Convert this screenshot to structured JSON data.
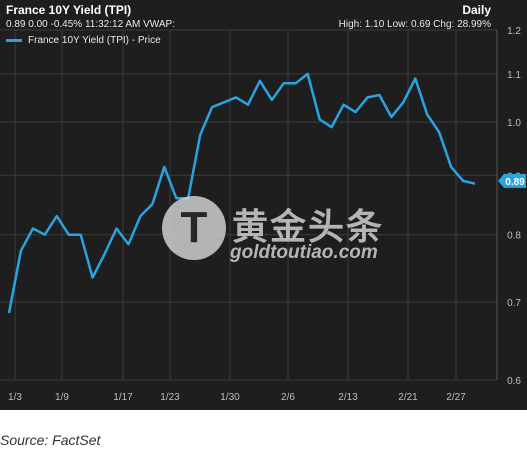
{
  "header": {
    "title": "France 10Y Yield (TPI)",
    "interval": "Daily",
    "quote": "0.89 0.00 -0.45% 11:32:12 AM VWAP:",
    "stats": "High: 1.10 Low: 0.69 Chg: 28.99%"
  },
  "legend": {
    "label": "France 10Y Yield (TPI) - Price"
  },
  "watermark": {
    "brand_cn": "黄金头条",
    "brand_en": "goldtoutiao.com",
    "badge": "T"
  },
  "source": "Source: FactSet",
  "colors": {
    "line": "#2aa4e0",
    "background": "#1e1e1e",
    "grid": "#3c3c3c",
    "text": "#e8e8e8"
  },
  "chart_data": {
    "type": "line",
    "title": "France 10Y Yield (TPI)",
    "xlabel": "",
    "ylabel": "",
    "y_scale": "log",
    "ylim": [
      0.6,
      1.2
    ],
    "x_tick_labels": [
      "1/3",
      "1/9",
      "1/17",
      "1/23",
      "1/30",
      "2/6",
      "2/13",
      "2/21",
      "2/27"
    ],
    "y_tick_labels": [
      "1.2",
      "1.1",
      "1.0",
      "0.9",
      "0.8",
      "0.7",
      "0.6"
    ],
    "y_ticks": [
      1.2,
      1.1,
      1.0,
      0.9,
      0.8,
      0.7,
      0.6
    ],
    "grid": true,
    "legend_position": "top-left",
    "last_value_label": "0.89",
    "last_value": 0.89,
    "series": [
      {
        "name": "France 10Y Yield (TPI) - Price",
        "values": [
          0.685,
          0.775,
          0.81,
          0.8,
          0.83,
          0.8,
          0.8,
          0.735,
          0.77,
          0.81,
          0.785,
          0.83,
          0.85,
          0.915,
          0.86,
          0.86,
          0.975,
          1.03,
          1.04,
          1.05,
          1.035,
          1.085,
          1.045,
          1.08,
          1.08,
          1.1,
          1.005,
          0.99,
          1.035,
          1.02,
          1.05,
          1.055,
          1.01,
          1.04,
          1.09,
          1.015,
          0.98,
          0.915,
          0.89,
          0.885
        ]
      }
    ]
  }
}
